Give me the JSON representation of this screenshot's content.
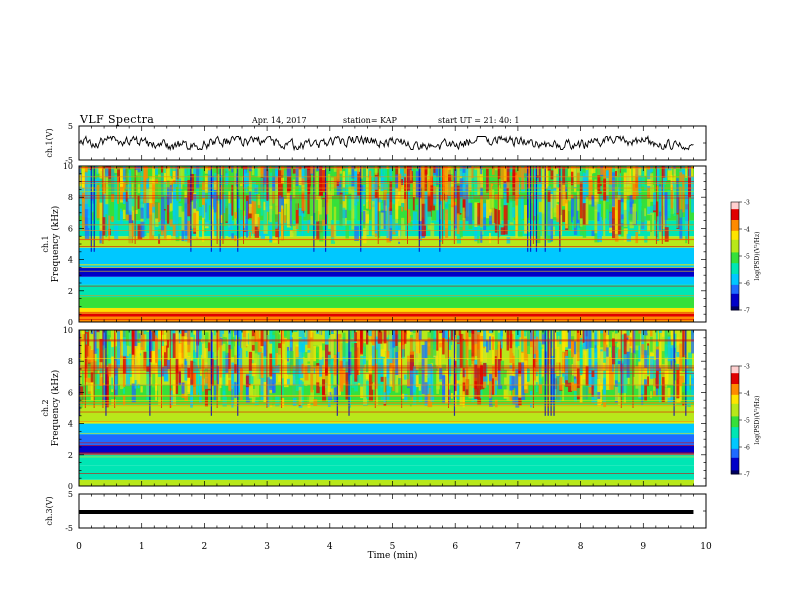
{
  "header": {
    "title": "VLF Spectra",
    "date": "Apr. 14, 2017",
    "station": "station= KAP",
    "start": "start UT =  21: 40: 1"
  },
  "colors": {
    "waveform": "#000000",
    "colormap": [
      "#000060",
      "#0000c8",
      "#1e6bff",
      "#00c8ff",
      "#00e6b4",
      "#36e03a",
      "#b8e81a",
      "#ffe400",
      "#ff8a00",
      "#e00000",
      "#ffd0d0"
    ]
  },
  "chart_data": [
    {
      "id": "ch1_waveform",
      "type": "line",
      "ylabel": "ch.1(V)",
      "ylim": [
        -5,
        5
      ],
      "yticks": [
        "5",
        "-5"
      ],
      "xlim": [
        0,
        10
      ],
      "baseline": 0,
      "typical_amplitude": 1.2,
      "description_of_series": "noisy signal around 0 V, peaks to about +1.8 V"
    },
    {
      "id": "ch1_spectrogram",
      "type": "heatmap",
      "ylabel": "ch.1 Frequency (kHz)",
      "ylim": [
        0,
        10
      ],
      "yticks": [
        "0",
        "2",
        "4",
        "6",
        "8",
        "10"
      ],
      "xlim": [
        0,
        10
      ],
      "colorbar": {
        "label": "log(PSD)(V²/Hz)",
        "range": [
          -7,
          -3
        ],
        "ticks": [
          "-3",
          "-4",
          "-5",
          "-6",
          "-7"
        ]
      },
      "bands_khz": [
        {
          "from": 0.0,
          "to": 0.35,
          "level": -4.0
        },
        {
          "from": 0.35,
          "to": 0.55,
          "level": -3.6
        },
        {
          "from": 0.55,
          "to": 0.9,
          "level": -4.2
        },
        {
          "from": 0.9,
          "to": 1.6,
          "level": -5.1
        },
        {
          "from": 1.6,
          "to": 2.4,
          "level": -5.3
        },
        {
          "from": 2.4,
          "to": 2.9,
          "level": -5.8
        },
        {
          "from": 2.9,
          "to": 3.5,
          "level": -6.6
        },
        {
          "from": 3.5,
          "to": 4.8,
          "level": -5.7
        },
        {
          "from": 4.8,
          "to": 5.5,
          "level": -4.6
        },
        {
          "from": 5.5,
          "to": 6.5,
          "level": -5.4
        },
        {
          "from": 6.5,
          "to": 10.0,
          "level": -4.9
        }
      ]
    },
    {
      "id": "ch2_spectrogram",
      "type": "heatmap",
      "ylabel": "ch.2 Frequency (kHz)",
      "ylim": [
        0,
        10
      ],
      "yticks": [
        "0",
        "2",
        "4",
        "6",
        "8",
        "10"
      ],
      "xlim": [
        0,
        10
      ],
      "colorbar": {
        "label": "log(PSD)(V²/Hz)",
        "range": [
          -7,
          -3
        ],
        "ticks": [
          "-3",
          "-4",
          "-5",
          "-6",
          "-7"
        ]
      },
      "bands_khz": [
        {
          "from": 0.0,
          "to": 0.4,
          "level": -4.6
        },
        {
          "from": 0.4,
          "to": 1.3,
          "level": -5.3
        },
        {
          "from": 1.3,
          "to": 2.0,
          "level": -5.6
        },
        {
          "from": 2.0,
          "to": 2.6,
          "level": -6.4
        },
        {
          "from": 2.6,
          "to": 3.3,
          "level": -6.1
        },
        {
          "from": 3.3,
          "to": 4.0,
          "level": -5.7
        },
        {
          "from": 4.0,
          "to": 5.2,
          "level": -4.7
        },
        {
          "from": 5.2,
          "to": 6.5,
          "level": -5.0
        },
        {
          "from": 6.5,
          "to": 10.0,
          "level": -4.8
        }
      ]
    },
    {
      "id": "ch3_waveform",
      "type": "line",
      "ylabel": "ch.3(V)",
      "ylim": [
        -5,
        5
      ],
      "yticks": [
        "5",
        "-5"
      ],
      "xlim": [
        0,
        10
      ],
      "constant_value": 0
    }
  ],
  "xaxis": {
    "label": "Time (min)",
    "ticks": [
      "0",
      "1",
      "2",
      "3",
      "4",
      "5",
      "6",
      "7",
      "8",
      "9",
      "10"
    ]
  }
}
